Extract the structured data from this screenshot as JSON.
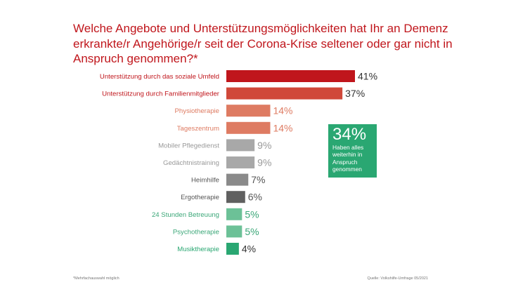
{
  "title": "Welche Angebote und Unterstützungsmöglichkeiten hat Ihr an Demenz erkrankte/r Angehörige/r seit der Corona-Krise seltener oder gar nicht in Anspruch genommen?*",
  "callout": {
    "value": "34%",
    "text": "Haben alles\nweiterhin in\nAnspruch\ngenommen",
    "color": "#2aa772"
  },
  "footnote": "*Mehrfachauswahl möglich",
  "source": "Quelle: Volkshilfe-Umfrage 05/2021",
  "chart_data": {
    "type": "bar",
    "orientation": "horizontal",
    "title": "Welche Angebote und Unterstützungsmöglichkeiten hat Ihr an Demenz erkrankte/r Angehörige/r seit der Corona-Krise seltener oder gar nicht in Anspruch genommen?*",
    "xlabel": "",
    "ylabel": "",
    "xlim": [
      0,
      41
    ],
    "categories": [
      "Unterstützung durch das soziale Umfeld",
      "Unterstützung durch Familienmitglieder",
      "Physiotherapie",
      "Tageszentrum",
      "Mobiler Pflegedienst",
      "Gedächtnistraining",
      "Heimhilfe",
      "Ergotherapie",
      "24 Stunden Betreuung",
      "Psychotherapie",
      "Musiktherapie"
    ],
    "values": [
      41,
      37,
      14,
      14,
      9,
      9,
      7,
      6,
      5,
      5,
      4
    ],
    "value_labels": [
      "41%",
      "37%",
      "14%",
      "14%",
      "9%",
      "9%",
      "7%",
      "6%",
      "5%",
      "5%",
      "4%"
    ],
    "bar_colors": [
      "#c0161c",
      "#d0483a",
      "#de7b62",
      "#de7b62",
      "#a8a8a8",
      "#a8a8a8",
      "#8a8a8a",
      "#606060",
      "#6cc197",
      "#6cc197",
      "#2aa772"
    ],
    "label_colors": [
      "#c0161c",
      "#c0161c",
      "#de7b62",
      "#de7b62",
      "#999999",
      "#999999",
      "#555555",
      "#555555",
      "#3ba778",
      "#3ba778",
      "#2aa772"
    ],
    "value_label_colors": [
      "#333333",
      "#333333",
      "#de7b62",
      "#de7b62",
      "#999999",
      "#999999",
      "#555555",
      "#555555",
      "#3ba778",
      "#3ba778",
      "#333333"
    ]
  }
}
